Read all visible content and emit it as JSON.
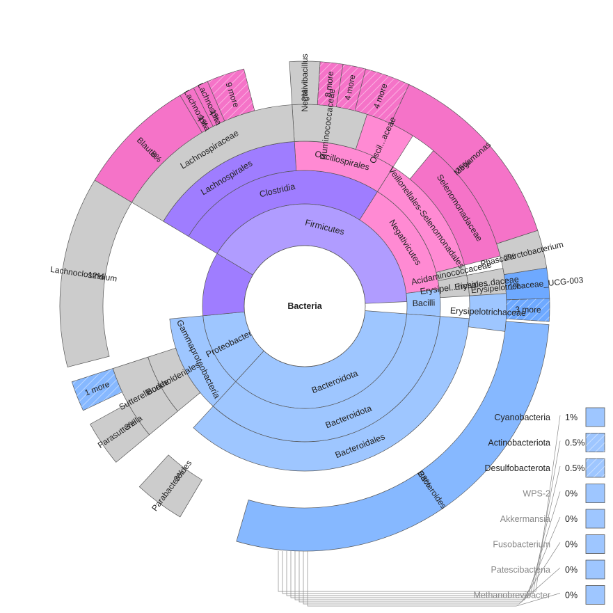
{
  "chart_data": {
    "type": "sunburst",
    "root": "Bacteria",
    "colors": {
      "firmicutes": "#f573c8",
      "firmicutes_mid": "#ff8ad3",
      "firmicutes_inner": "#b09cff",
      "clostridia": "#9f7dff",
      "bacteroidota": "#9ec6ff",
      "bacteroides": "#86b8ff",
      "erysipelo": "#6ea9ff",
      "gray": "#cccccc",
      "stroke": "#555555",
      "key_fill": "#9ec6ff"
    },
    "rings": {
      "phylum": [
        {
          "label": "Firmicutes",
          "from": 0.586,
          "to": 0.993,
          "color": "firmicutes_inner"
        },
        {
          "label": "Bacteroidota",
          "from": 0.012,
          "to": 0.368,
          "color": "bacteroidota"
        },
        {
          "label": "Proteobacteria",
          "from": 0.368,
          "to": 0.485,
          "color": "bacteroidota"
        },
        {
          "label": "",
          "from": 0.485,
          "to": 0.586,
          "color": "clostridia"
        }
      ],
      "class": [
        {
          "label": "Negativicutes",
          "from": 0.84,
          "to": 0.98,
          "color": "firmicutes_mid"
        },
        {
          "label": "Bacilli",
          "from": 0.98,
          "to": 1.012,
          "color": "bacteroidota"
        },
        {
          "label": "Clostridia",
          "from": 0.586,
          "to": 0.84,
          "color": "clostridia"
        },
        {
          "label": "Bacteroidota",
          "from": 0.012,
          "to": 0.368,
          "color": "bacteroidota"
        },
        {
          "label": "Gammaproteobacteria",
          "from": 0.368,
          "to": 0.485,
          "color": "bacteroidota"
        }
      ],
      "order": [
        {
          "label": "Veillonellales-Selenomonadales",
          "from": 0.84,
          "to": 0.96,
          "color": "firmicutes_mid"
        },
        {
          "label": "Acidaminococcaceae",
          "from": 0.96,
          "to": 0.97,
          "color": "gray"
        },
        {
          "label": "Erysipel...richales",
          "from": 0.97,
          "to": 0.99,
          "color": "gray"
        },
        {
          "label": "Oscillospirales",
          "from": 0.74,
          "to": 0.84,
          "color": "firmicutes_mid"
        },
        {
          "label": "Lachnospirales",
          "from": 0.586,
          "to": 0.74,
          "color": "clostridia"
        },
        {
          "label": "Bacteroidales",
          "from": 0.012,
          "to": 0.368,
          "color": "bacteroidota"
        },
        {
          "label": "Burkholderiales",
          "from": 0.39,
          "to": 0.45,
          "color": "gray"
        }
      ],
      "family": [
        {
          "label": "Selenomonadaceae",
          "from": 0.86,
          "to": 0.96,
          "color": "firmicutes"
        },
        {
          "label": "Erysipe...daceae",
          "from": 0.97,
          "to": 0.99,
          "color": "gray"
        },
        {
          "label": "Erysipelotrichaceae",
          "from": 0.99,
          "to": 1.02,
          "color": "bacteroidota"
        },
        {
          "label": "Oscil...aceae",
          "from": 0.8,
          "to": 0.84,
          "color": "firmicutes_mid"
        },
        {
          "label": "Ruminococcaceae",
          "from": 0.74,
          "to": 0.8,
          "color": "gray"
        },
        {
          "label": "Lachnospiraceae",
          "from": 0.586,
          "to": 0.74,
          "color": "gray"
        },
        {
          "label": "Sutterellaceae",
          "from": 0.39,
          "to": 0.45,
          "color": "gray"
        }
      ],
      "genus": [
        {
          "label": "Megamonas",
          "value": 25,
          "pct": "25%",
          "from": 0.82,
          "to": 0.95,
          "color": "firmicutes"
        },
        {
          "label": "Phascolarctobacterium",
          "value": 2,
          "pct": "2%",
          "from": 0.95,
          "to": 0.975,
          "color": "gray"
        },
        {
          "label": "Erysipelotrichaceae_UCG-003",
          "value": 1,
          "pct": "1%",
          "from": 0.975,
          "to": 0.995,
          "color": "erysipelo"
        },
        {
          "label": "3 more",
          "from": 0.995,
          "to": 1.01,
          "color": "erysipelo"
        },
        {
          "label": "Bacteroides",
          "value": 28,
          "pct": "28%",
          "from": 0.012,
          "to": 0.295,
          "color": "bacteroides"
        },
        {
          "label": "Parabacteroides",
          "value": 3,
          "pct": "3%",
          "from": 0.335,
          "to": 0.368,
          "color": "gray"
        },
        {
          "label": "Parasutterella",
          "value": 3,
          "pct": "3%",
          "from": 0.39,
          "to": 0.42,
          "color": "gray"
        },
        {
          "label": "1 more",
          "from": 0.43,
          "to": 0.45,
          "color": "bacteroides"
        },
        {
          "label": "Lachnoclostridium",
          "value": 12,
          "pct": "12%",
          "from": 0.46,
          "to": 0.586,
          "color": "gray"
        },
        {
          "label": "Blautia",
          "value": 8,
          "pct": "8%",
          "from": 0.586,
          "to": 0.665,
          "color": "firmicutes"
        },
        {
          "label": "Lachnospira",
          "value": 1,
          "pct": "1%",
          "from": 0.665,
          "to": 0.675,
          "color": "firmicutes"
        },
        {
          "label": "Lachnospira",
          "value": 1,
          "pct": "1%",
          "from": 0.675,
          "to": 0.685,
          "color": "firmicutes"
        },
        {
          "label": "9 more",
          "from": 0.685,
          "to": 0.71,
          "color": "firmicutes"
        },
        {
          "label": "Negativibacillus",
          "value": 2,
          "pct": "2%",
          "from": 0.74,
          "to": 0.76,
          "color": "gray"
        },
        {
          "label": "8 more",
          "from": 0.76,
          "to": 0.775,
          "color": "firmicutes"
        },
        {
          "label": "4 more",
          "from": 0.775,
          "to": 0.79,
          "color": "firmicutes"
        },
        {
          "label": "4 more",
          "from": 0.79,
          "to": 0.82,
          "color": "firmicutes"
        }
      ]
    },
    "key": [
      {
        "label": "Cyanobacteria",
        "pct": "1%"
      },
      {
        "label": "Actinobacteriota",
        "pct": "0.5%"
      },
      {
        "label": "Desulfobacterota",
        "pct": "0.5%"
      },
      {
        "label": "WPS-2",
        "pct": "0%"
      },
      {
        "label": "Akkermansia",
        "pct": "0%"
      },
      {
        "label": "Fusobacterium",
        "pct": "0%"
      },
      {
        "label": "Patescibacteria",
        "pct": "0%"
      },
      {
        "label": "Methanobrevibacter",
        "pct": "0%"
      }
    ]
  }
}
